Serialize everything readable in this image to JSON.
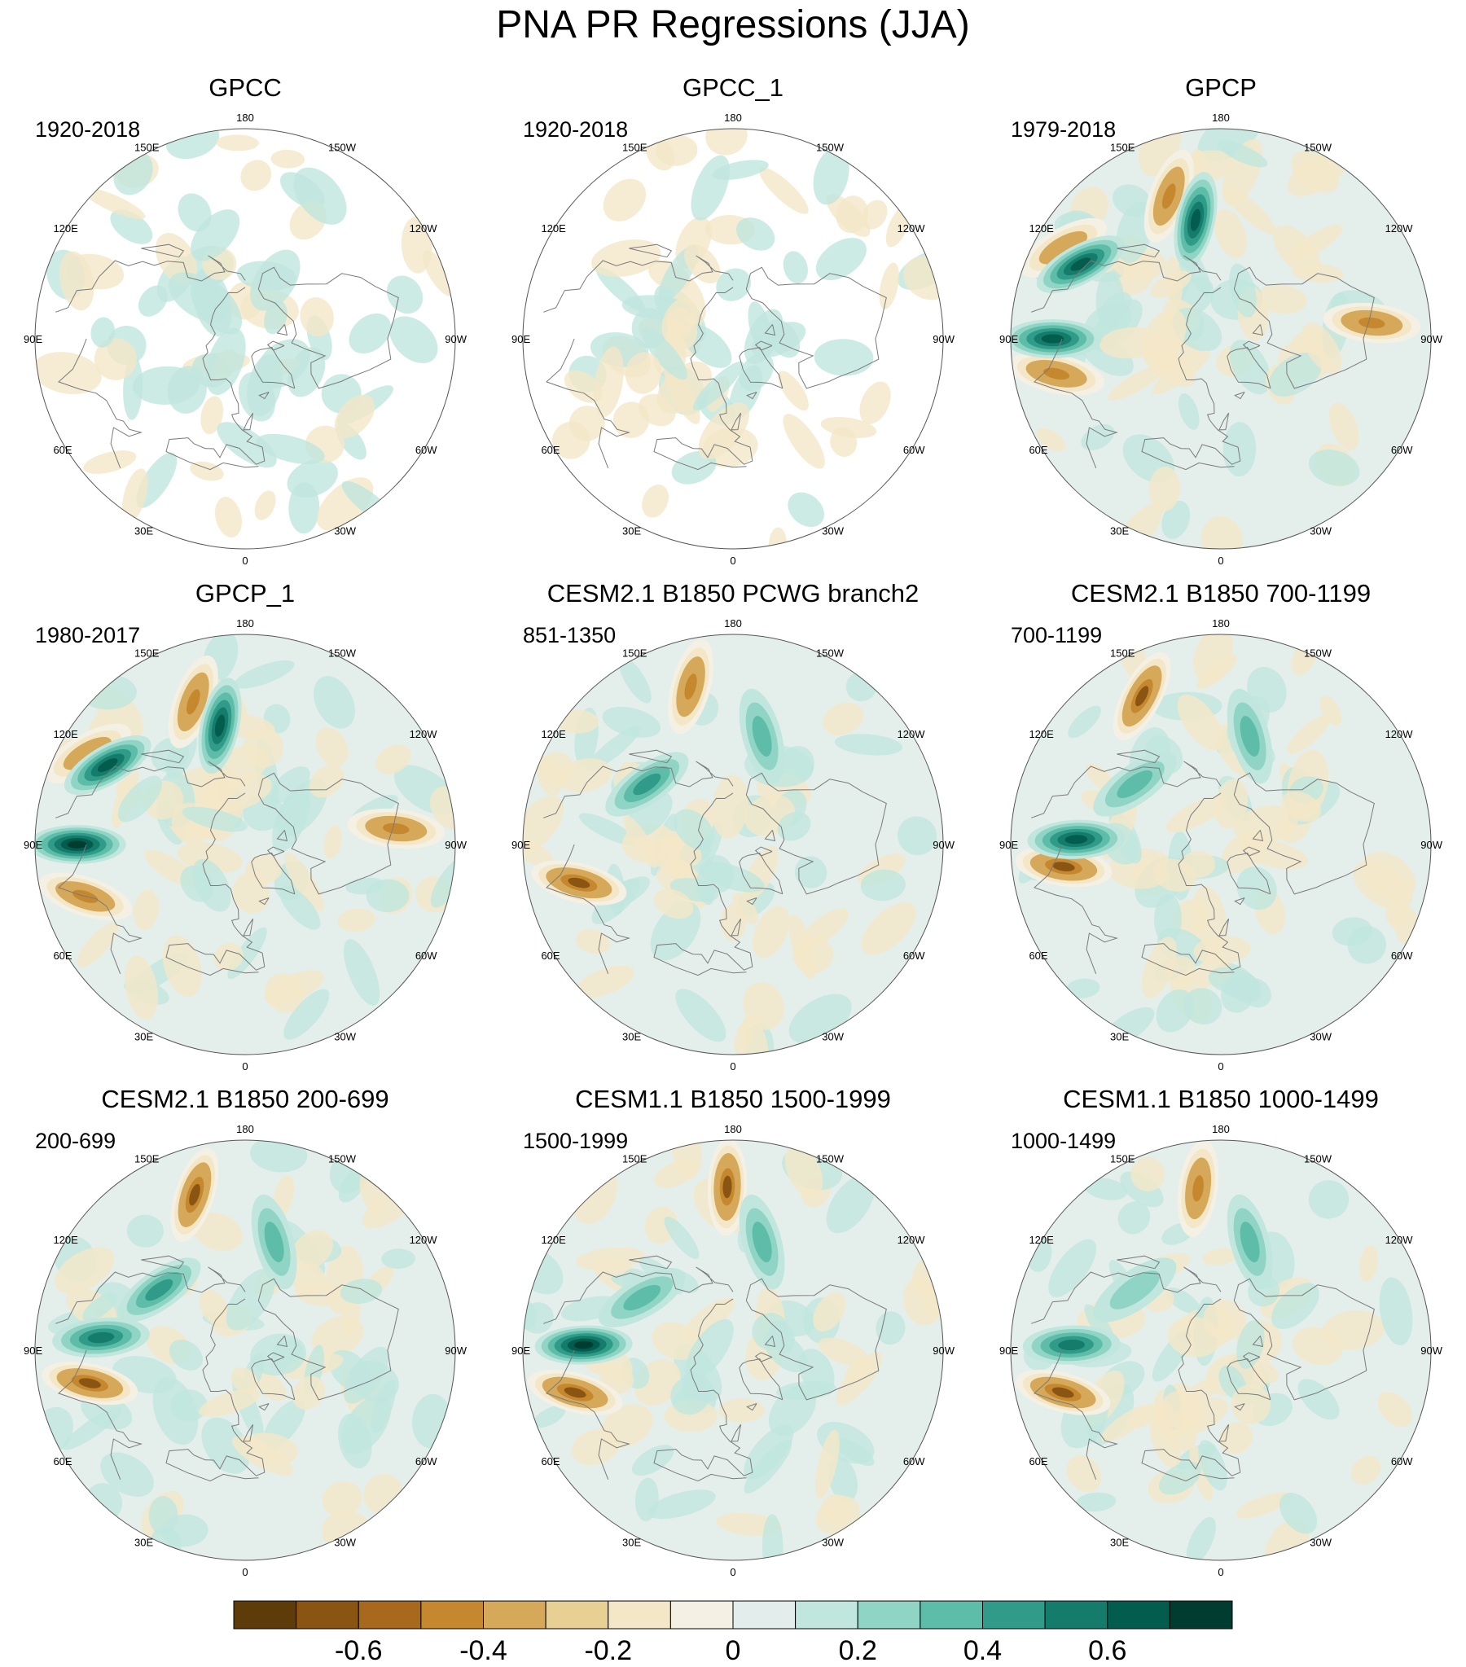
{
  "chart_data": {
    "type": "heatmap",
    "title": "PNA PR Regressions (JJA)",
    "projection": "north polar stereographic",
    "longitude_labels": [
      "180",
      "150E",
      "120E",
      "90E",
      "60E",
      "30E",
      "0",
      "30W",
      "60W",
      "90W",
      "120W",
      "150W"
    ],
    "colorbar": {
      "tick_labels": [
        "-0.6",
        "-0.4",
        "-0.2",
        "0",
        "0.2",
        "0.4",
        "0.6"
      ],
      "tick_values": [
        -0.6,
        -0.4,
        -0.2,
        0,
        0.2,
        0.4,
        0.6
      ],
      "levels": [
        -0.7,
        -0.6,
        -0.5,
        -0.4,
        -0.3,
        -0.2,
        -0.1,
        0,
        0.1,
        0.2,
        0.3,
        0.4,
        0.5,
        0.6,
        0.7
      ],
      "colors": [
        "#5e3c0a",
        "#8a5512",
        "#a8681d",
        "#c5882f",
        "#d6a95a",
        "#e8cf94",
        "#f4e7c8",
        "#f5f0e4",
        "#e3eeec",
        "#c0e6de",
        "#8fd4c5",
        "#5ebda9",
        "#2f9b88",
        "#157b6b",
        "#035d4f",
        "#003c30"
      ]
    },
    "panels": [
      {
        "title": "GPCC",
        "period": "1920-2018",
        "land_only": true,
        "negatives": [],
        "positives": []
      },
      {
        "title": "GPCC_1",
        "period": "1920-2018",
        "land_only": true,
        "negatives": [],
        "positives": []
      },
      {
        "title": "GPCP",
        "period": "1979-2018",
        "land_only": false,
        "negatives": [
          {
            "lon": 160,
            "lat": 25,
            "value": -0.5
          },
          {
            "lon": 120,
            "lat": 12,
            "value": -0.4
          },
          {
            "lon": 78,
            "lat": 18,
            "value": -0.5
          },
          {
            "lon": -96,
            "lat": 25,
            "value": -0.5
          }
        ],
        "positives": [
          {
            "lon": 168,
            "lat": 38,
            "value": 0.6
          },
          {
            "lon": 118,
            "lat": 22,
            "value": 0.6
          },
          {
            "lon": 90,
            "lat": 18,
            "value": 0.6
          }
        ]
      },
      {
        "title": "GPCP_1",
        "period": "1980-2017",
        "land_only": false,
        "negatives": [
          {
            "lon": 160,
            "lat": 25,
            "value": -0.5
          },
          {
            "lon": 120,
            "lat": 12,
            "value": -0.4
          },
          {
            "lon": 72,
            "lat": 18,
            "value": -0.5
          },
          {
            "lon": -96,
            "lat": 25,
            "value": -0.5
          }
        ],
        "positives": [
          {
            "lon": 168,
            "lat": 38,
            "value": 0.6
          },
          {
            "lon": 120,
            "lat": 22,
            "value": 0.6
          },
          {
            "lon": 90,
            "lat": 18,
            "value": 0.7
          }
        ]
      },
      {
        "title": "CESM2.1 B1850 PCWG branch2",
        "period": "851-1350",
        "land_only": false,
        "negatives": [
          {
            "lon": 165,
            "lat": 20,
            "value": -0.5
          },
          {
            "lon": 76,
            "lat": 22,
            "value": -0.6
          }
        ],
        "positives": [
          {
            "lon": -165,
            "lat": 42,
            "value": 0.3
          },
          {
            "lon": 125,
            "lat": 45,
            "value": 0.4
          }
        ]
      },
      {
        "title": "CESM2.1 B1850 700-1199",
        "period": "700-1199",
        "land_only": false,
        "negatives": [
          {
            "lon": 152,
            "lat": 18,
            "value": -0.6
          },
          {
            "lon": 82,
            "lat": 22,
            "value": -0.6
          }
        ],
        "positives": [
          {
            "lon": -165,
            "lat": 42,
            "value": 0.3
          },
          {
            "lon": 125,
            "lat": 45,
            "value": 0.3
          },
          {
            "lon": 92,
            "lat": 28,
            "value": 0.6
          }
        ]
      },
      {
        "title": "CESM2.1 B1850 200-699",
        "period": "200-699",
        "land_only": false,
        "negatives": [
          {
            "lon": 162,
            "lat": 20,
            "value": -0.6
          },
          {
            "lon": 78,
            "lat": 22,
            "value": -0.6
          }
        ],
        "positives": [
          {
            "lon": -165,
            "lat": 42,
            "value": 0.3
          },
          {
            "lon": 125,
            "lat": 45,
            "value": 0.4
          },
          {
            "lon": 95,
            "lat": 28,
            "value": 0.5
          }
        ]
      },
      {
        "title": "CESM1.1 B1850 1500-1999",
        "period": "1500-1999",
        "land_only": false,
        "negatives": [
          {
            "lon": 178,
            "lat": 20,
            "value": -0.6
          },
          {
            "lon": 75,
            "lat": 20,
            "value": -0.6
          }
        ],
        "positives": [
          {
            "lon": -165,
            "lat": 42,
            "value": 0.3
          },
          {
            "lon": 120,
            "lat": 45,
            "value": 0.3
          },
          {
            "lon": 92,
            "lat": 26,
            "value": 0.7
          }
        ]
      },
      {
        "title": "CESM1.1 B1850 1000-1499",
        "period": "1000-1499",
        "land_only": false,
        "negatives": [
          {
            "lon": 172,
            "lat": 20,
            "value": -0.5
          },
          {
            "lon": 75,
            "lat": 20,
            "value": -0.6
          }
        ],
        "positives": [
          {
            "lon": -165,
            "lat": 42,
            "value": 0.3
          },
          {
            "lon": 125,
            "lat": 45,
            "value": 0.2
          },
          {
            "lon": 92,
            "lat": 26,
            "value": 0.5
          }
        ]
      }
    ]
  }
}
